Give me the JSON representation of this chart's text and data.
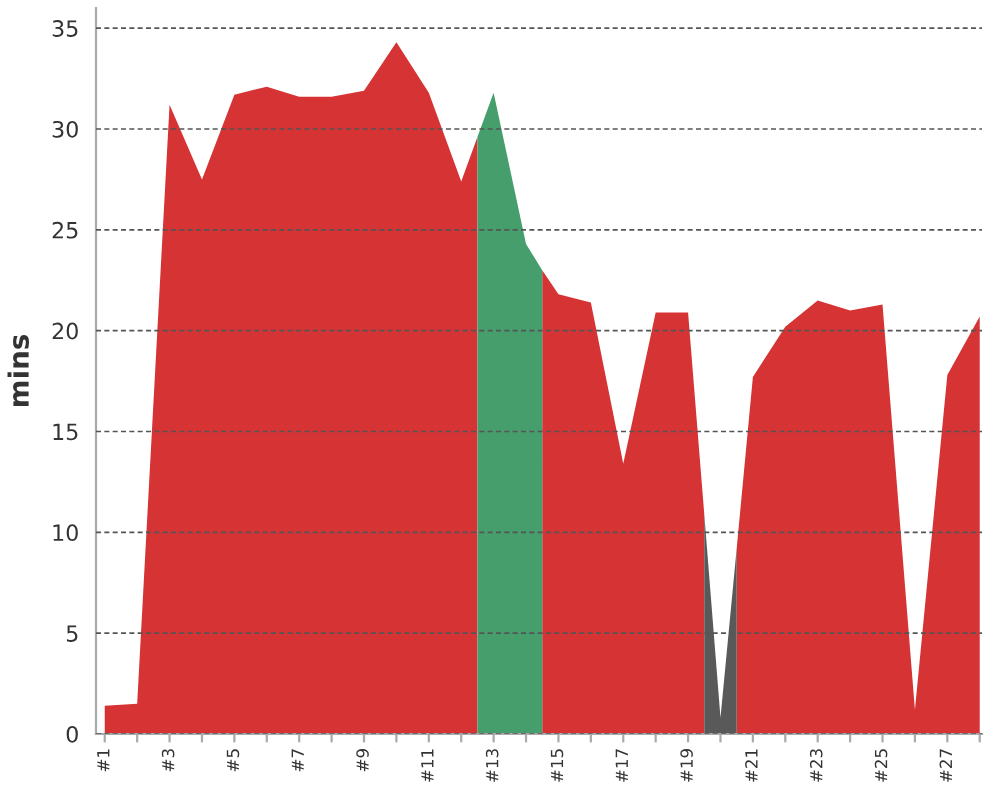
{
  "chart_data": {
    "type": "area",
    "ylabel": "mins",
    "series": [
      {
        "color": "#d63335",
        "x": [
          1,
          2,
          3,
          4,
          5,
          6,
          7,
          8,
          9,
          10,
          11,
          12,
          12.5,
          13.5,
          14.5,
          15,
          16,
          17,
          18,
          19,
          19.5,
          20,
          20.5,
          21,
          22,
          23,
          24,
          25,
          26,
          27,
          28
        ],
        "values": [
          1.4,
          1.5,
          31.2,
          27.5,
          31.7,
          32.1,
          31.6,
          31.6,
          31.9,
          34.3,
          31.8,
          27.4,
          29.6,
          null,
          23.0,
          21.8,
          21.4,
          13.4,
          20.9,
          20.9,
          10.9,
          null,
          9.2,
          17.7,
          20.2,
          21.5,
          21.0,
          21.3,
          1.2,
          17.8,
          20.7
        ]
      },
      {
        "color": "#459e6c",
        "x": [
          12.5,
          13,
          14,
          14.5
        ],
        "values": [
          29.6,
          31.8,
          24.3,
          23.0
        ]
      },
      {
        "color": "#595959",
        "x": [
          19.5,
          20,
          20.5
        ],
        "values": [
          10.9,
          0.8,
          9.2
        ]
      }
    ],
    "xlim": [
      0.73,
      28.07
    ],
    "xticks": [
      {
        "value": 1,
        "label": "#1"
      },
      {
        "value": 2,
        "label": null
      },
      {
        "value": 3,
        "label": "#3"
      },
      {
        "value": 4,
        "label": null
      },
      {
        "value": 5,
        "label": "#5"
      },
      {
        "value": 6,
        "label": null
      },
      {
        "value": 7,
        "label": "#7"
      },
      {
        "value": 8,
        "label": null
      },
      {
        "value": 9,
        "label": "#9"
      },
      {
        "value": 10,
        "label": null
      },
      {
        "value": 11,
        "label": "#11"
      },
      {
        "value": 12,
        "label": null
      },
      {
        "value": 13,
        "label": "#13"
      },
      {
        "value": 14,
        "label": null
      },
      {
        "value": 15,
        "label": "#15"
      },
      {
        "value": 16,
        "label": null
      },
      {
        "value": 17,
        "label": "#17"
      },
      {
        "value": 18,
        "label": null
      },
      {
        "value": 19,
        "label": "#19"
      },
      {
        "value": 20,
        "label": null
      },
      {
        "value": 21,
        "label": "#21"
      },
      {
        "value": 22,
        "label": null
      },
      {
        "value": 23,
        "label": "#23"
      },
      {
        "value": 24,
        "label": null
      },
      {
        "value": 25,
        "label": "#25"
      },
      {
        "value": 26,
        "label": null
      },
      {
        "value": 27,
        "label": "#27"
      },
      {
        "value": 28,
        "label": null
      }
    ],
    "ylim": [
      0,
      36
    ],
    "yticks": [
      0,
      5,
      10,
      15,
      20,
      25,
      30,
      35
    ],
    "grid": "y"
  }
}
